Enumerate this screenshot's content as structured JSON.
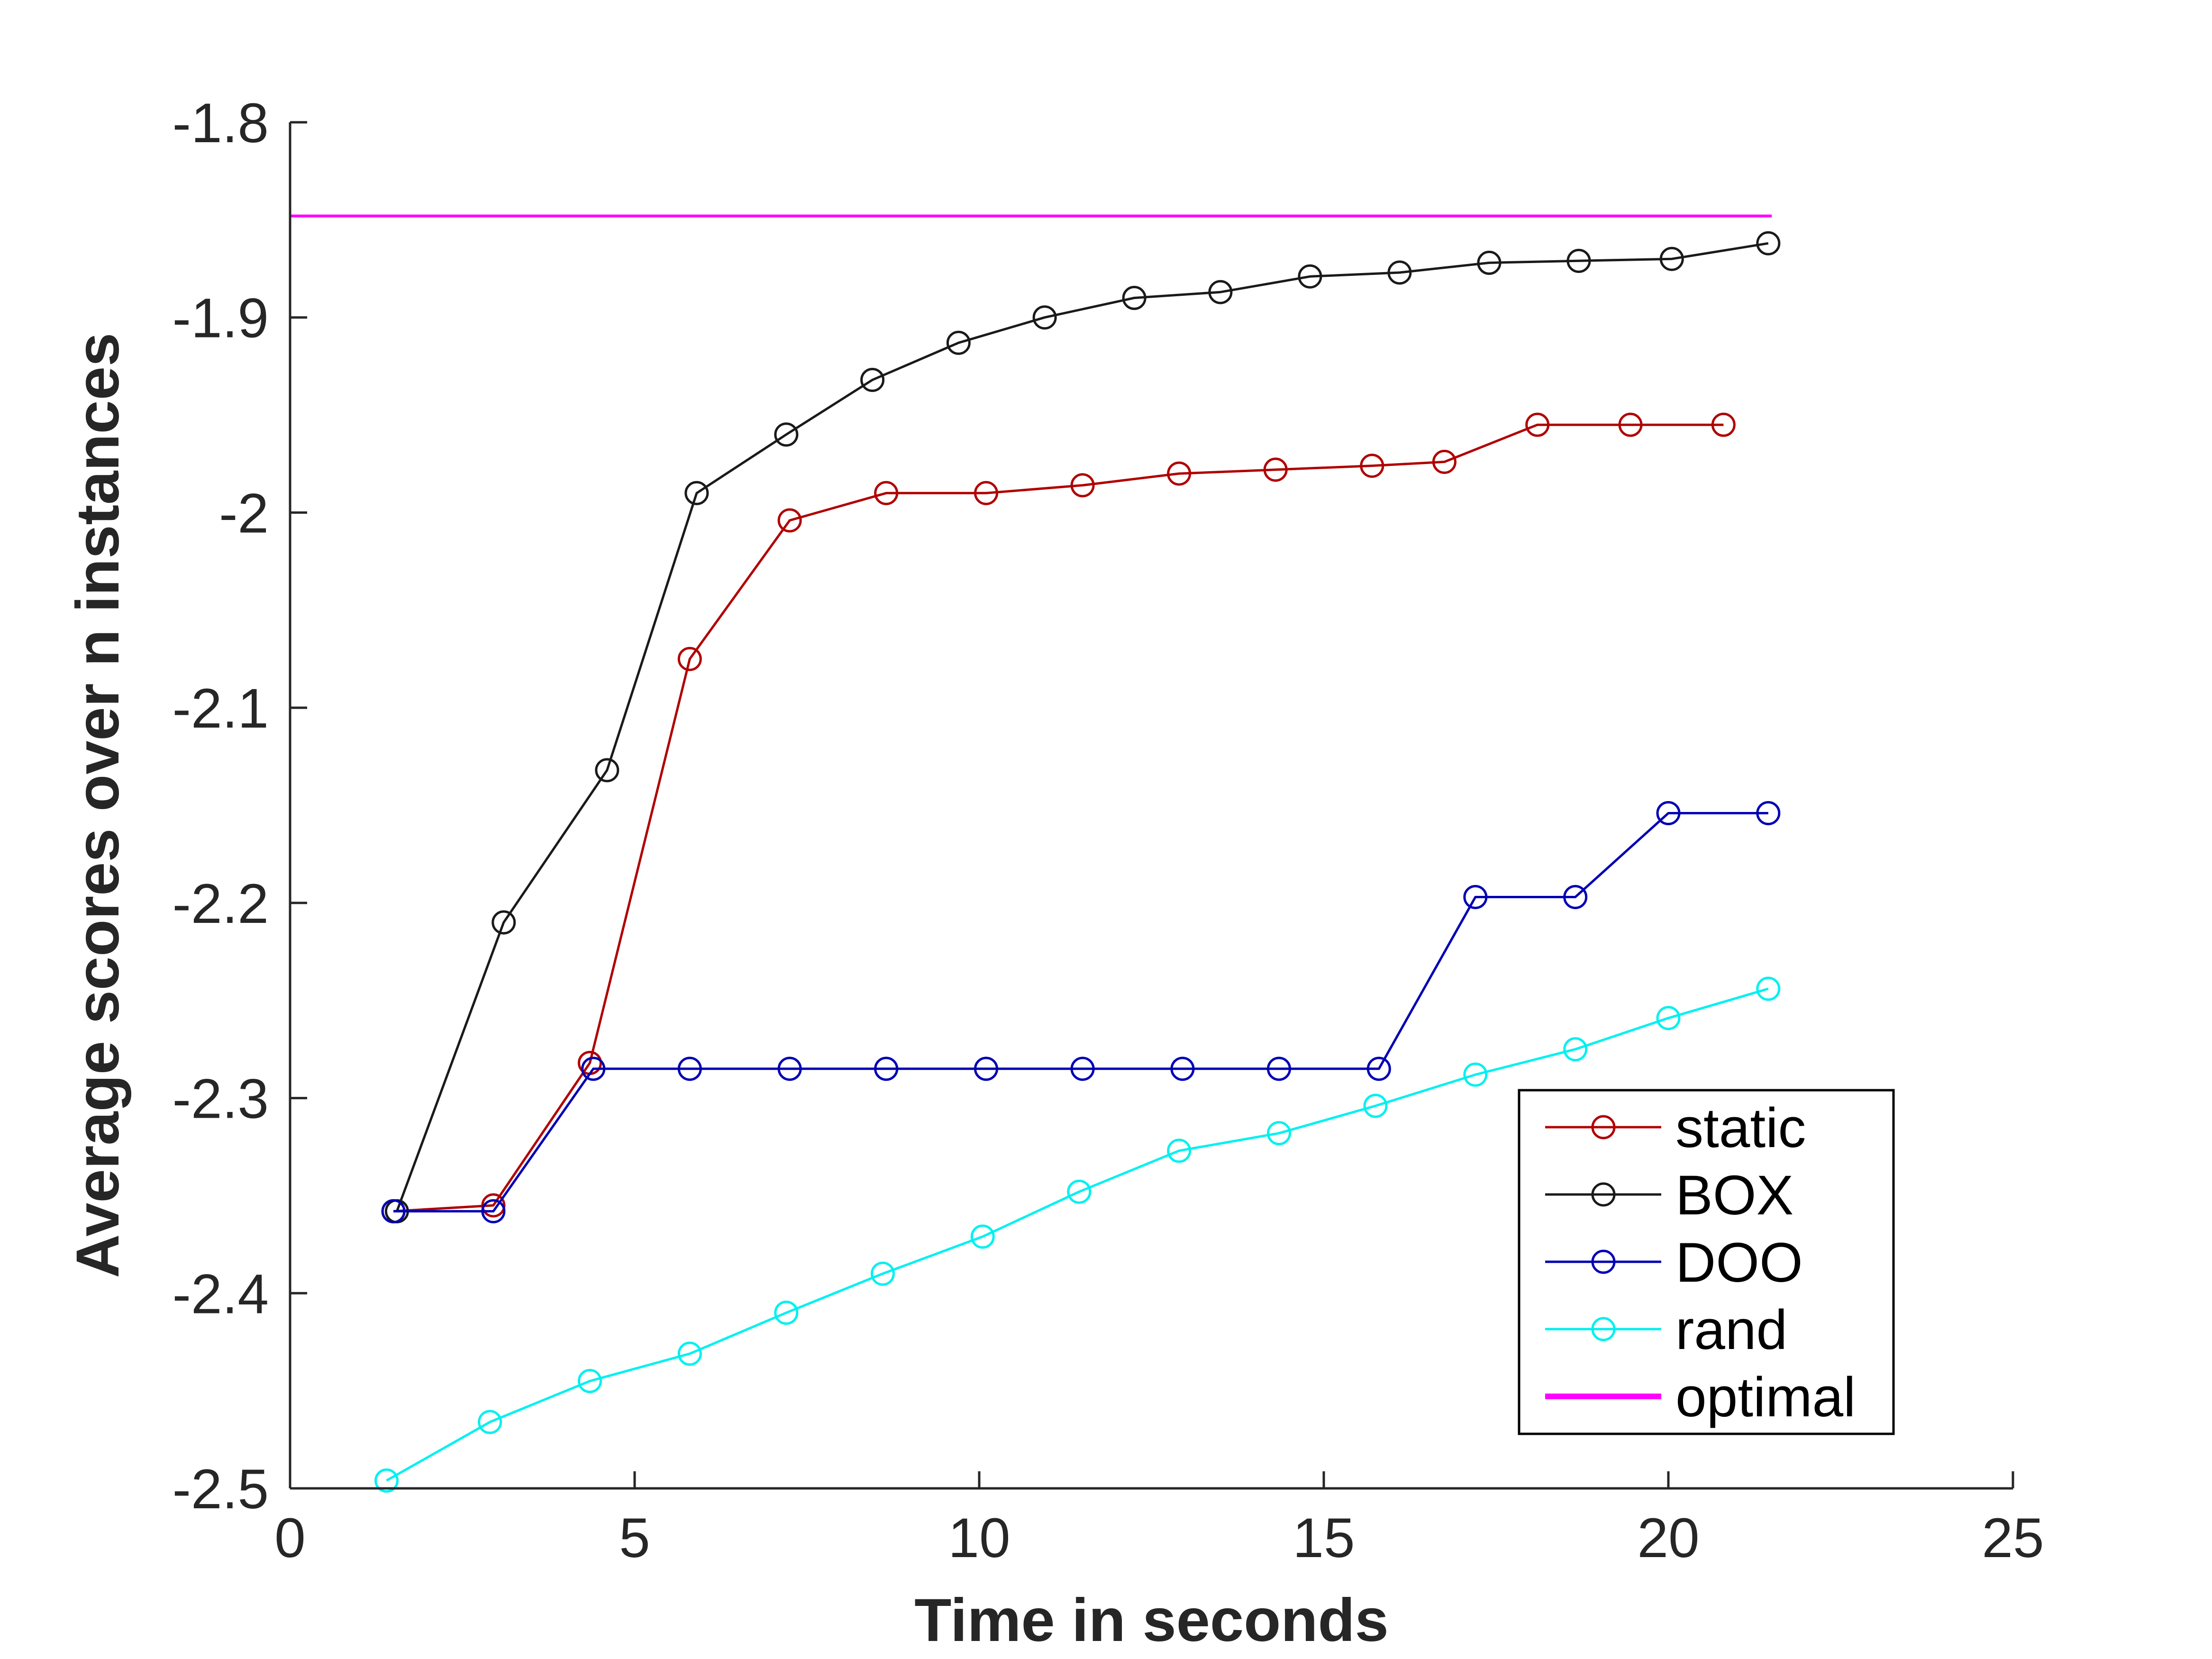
{
  "chart_data": {
    "type": "line",
    "title": "",
    "xlabel": "Time in seconds",
    "ylabel": "Average scores over n instances",
    "xlim": [
      0,
      25
    ],
    "ylim": [
      -2.5,
      -1.8
    ],
    "xticks": [
      0,
      5,
      10,
      15,
      20,
      25
    ],
    "yticks": [
      -2.5,
      -2.4,
      -2.3,
      -2.2,
      -2.1,
      -2,
      -1.9,
      -1.8
    ],
    "xtick_labels": [
      "0",
      "5",
      "10",
      "15",
      "20",
      "25"
    ],
    "ytick_labels": [
      "-2.5",
      "-2.4",
      "-2.3",
      "-2.2",
      "-2.1",
      "-2",
      "-1.9",
      "-1.8"
    ],
    "grid": false,
    "legend_position": "bottom-right",
    "series": [
      {
        "name": "static",
        "color": "#b00000",
        "marker": "circle",
        "x": [
          1.5,
          2.95,
          4.35,
          5.8,
          7.25,
          8.65,
          10.1,
          11.5,
          12.9,
          14.3,
          15.7,
          16.75,
          18.1,
          19.45,
          20.8
        ],
        "y": [
          -2.358,
          -2.355,
          -2.282,
          -2.075,
          -2.004,
          -1.99,
          -1.99,
          -1.986,
          -1.98,
          -1.978,
          -1.976,
          -1.974,
          -1.955,
          -1.955,
          -1.955
        ]
      },
      {
        "name": "BOX",
        "color": "#1a1a1a",
        "marker": "circle",
        "x": [
          1.55,
          3.1,
          4.6,
          5.9,
          7.2,
          8.45,
          9.7,
          10.95,
          12.25,
          13.5,
          14.8,
          16.1,
          17.4,
          18.7,
          20.05,
          21.45
        ],
        "y": [
          -2.358,
          -2.21,
          -2.132,
          -1.99,
          -1.96,
          -1.932,
          -1.913,
          -1.9,
          -1.89,
          -1.887,
          -1.879,
          -1.877,
          -1.872,
          -1.871,
          -1.87,
          -1.862
        ]
      },
      {
        "name": "DOO",
        "color": "#0000b4",
        "marker": "circle",
        "x": [
          1.5,
          2.95,
          4.4,
          5.8,
          7.25,
          8.65,
          10.1,
          11.5,
          12.95,
          14.35,
          15.8,
          17.2,
          18.65,
          20.0,
          21.45
        ],
        "y": [
          -2.358,
          -2.358,
          -2.285,
          -2.285,
          -2.285,
          -2.285,
          -2.285,
          -2.285,
          -2.285,
          -2.285,
          -2.285,
          -2.197,
          -2.197,
          -2.154,
          -2.154
        ]
      },
      {
        "name": "rand",
        "color": "#00f0f0",
        "marker": "circle",
        "x": [
          1.4,
          2.9,
          4.35,
          5.8,
          7.2,
          8.6,
          10.05,
          11.45,
          12.9,
          14.35,
          15.75,
          17.2,
          18.65,
          20.0,
          21.45
        ],
        "y": [
          -2.496,
          -2.466,
          -2.445,
          -2.431,
          -2.41,
          -2.39,
          -2.371,
          -2.348,
          -2.327,
          -2.318,
          -2.304,
          -2.288,
          -2.275,
          -2.259,
          -2.244
        ]
      },
      {
        "name": "optimal",
        "color": "#ff00ff",
        "marker": "none",
        "x": [
          0,
          21.5
        ],
        "y": [
          -1.848,
          -1.848
        ]
      }
    ]
  }
}
